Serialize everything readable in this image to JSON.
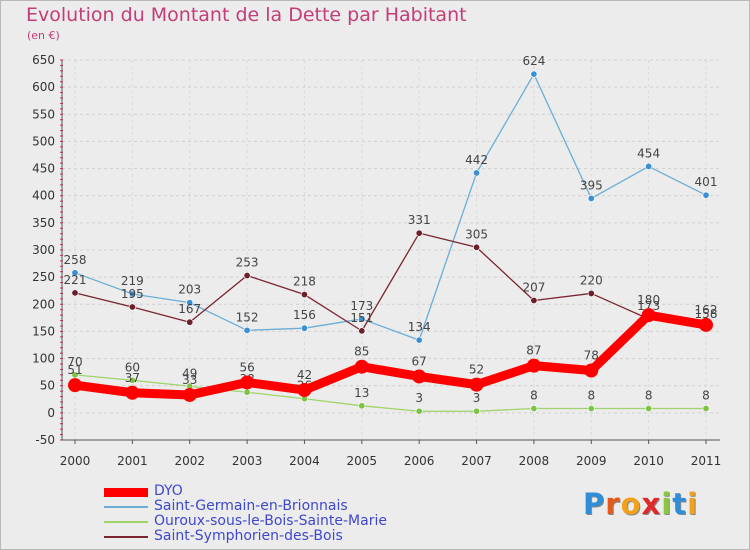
{
  "header": {
    "title": "Evolution du Montant de la Dette par Habitant",
    "unit": "(en €)"
  },
  "logo": {
    "text": "Proxiti"
  },
  "chart_data": {
    "type": "line",
    "title": "Evolution du Montant de la Dette par Habitant",
    "subtitle": "(en €)",
    "xlabel": "",
    "ylabel": "",
    "ylim": [
      -50,
      650
    ],
    "yticks": [
      -50,
      0,
      50,
      100,
      150,
      200,
      250,
      300,
      350,
      400,
      450,
      500,
      550,
      600,
      650
    ],
    "categories": [
      "2000",
      "2001",
      "2002",
      "2003",
      "2004",
      "2005",
      "2006",
      "2007",
      "2008",
      "2009",
      "2010",
      "2011"
    ],
    "grid": "horizontal",
    "legend_position": "bottom-left",
    "series": [
      {
        "name": "Saint-Germain-en-Brionnais",
        "color": "#6aaed6",
        "marker": "#3b8fd4",
        "values": [
          258,
          219,
          203,
          152,
          156,
          173,
          134,
          442,
          624,
          395,
          454,
          401
        ]
      },
      {
        "name": "Saint-Symphorien-des-Bois",
        "color": "#7a2430",
        "marker": "#6b1f2a",
        "values": [
          221,
          195,
          167,
          253,
          218,
          151,
          331,
          305,
          207,
          220,
          173,
          158
        ]
      },
      {
        "name": "Ouroux-sous-le-Bois-Sainte-Marie",
        "color": "#9ed46a",
        "marker": "#7ec246",
        "values": [
          70,
          60,
          49,
          38,
          26,
          13,
          3,
          3,
          8,
          8,
          8,
          8
        ]
      },
      {
        "name": "DYO",
        "color": "#ff0000",
        "marker": "#ff0000",
        "values": [
          51,
          37,
          33,
          56,
          42,
          85,
          67,
          52,
          87,
          78,
          180,
          162
        ]
      }
    ],
    "legend_order": [
      "DYO",
      "Saint-Germain-en-Brionnais",
      "Ouroux-sous-le-Bois-Sainte-Marie",
      "Saint-Symphorien-des-Bois"
    ],
    "data_label_text": [
      [
        "258",
        "219",
        "203",
        "152",
        "156",
        "173",
        "134",
        "442",
        "624",
        "395",
        "454",
        "401"
      ],
      [
        "221",
        "195",
        "167",
        "253",
        "218",
        "151",
        "331",
        "305",
        "207",
        "220",
        "173",
        "158"
      ],
      [
        "70",
        "60",
        "49",
        "38",
        "26",
        "13",
        "3",
        "3",
        "8",
        "8",
        "8",
        "8"
      ],
      [
        "51",
        "37",
        "33",
        "56",
        "42",
        "85",
        "67",
        "52",
        "87",
        "78",
        "180",
        "162"
      ]
    ]
  }
}
